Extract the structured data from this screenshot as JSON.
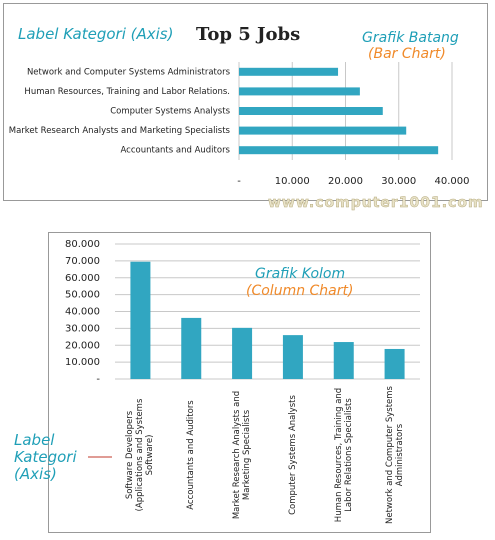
{
  "chart_data": [
    {
      "type": "bar",
      "orientation": "horizontal",
      "title": "Top 5 Jobs",
      "categories": [
        "Network and Computer Systems Administrators",
        "Human Resources, Training and Labor Relations.",
        "Computer Systems Analysts",
        "Market Research Analysts and Marketing Specialists",
        "Accountants and Auditors"
      ],
      "values": [
        18600,
        22700,
        27000,
        31400,
        37400
      ],
      "color": "#31a6c1",
      "xlim": [
        0,
        40000
      ],
      "xticks": [
        {
          "value": 0,
          "label": "-"
        },
        {
          "value": 10000,
          "label": "10.000"
        },
        {
          "value": 20000,
          "label": "20.000"
        },
        {
          "value": 30000,
          "label": "30.000"
        },
        {
          "value": 40000,
          "label": "40.000"
        }
      ],
      "grid": true,
      "annotations": {
        "axis_label": "Label Kategori (Axis)",
        "chart_name": "Grafik Batang",
        "chart_name_en": "(Bar Chart)",
        "watermark": "www.computer1001.com"
      }
    },
    {
      "type": "column",
      "categories": [
        "Software Developers (Applications and Systems Software)",
        "Accountants and Auditors",
        "Market Research Analysts and Marketing Specialists",
        "Computer Systems Analysts",
        "Human Resources, Training and Labor Relations Specialists",
        "Network and Computer Systems Administrators"
      ],
      "values": [
        69500,
        36200,
        30300,
        26000,
        21900,
        17800
      ],
      "color": "#31a6c1",
      "ylim": [
        0,
        80000
      ],
      "yticks": [
        {
          "value": 0,
          "label": "-"
        },
        {
          "value": 10000,
          "label": "10.000"
        },
        {
          "value": 20000,
          "label": "20.000"
        },
        {
          "value": 30000,
          "label": "30.000"
        },
        {
          "value": 40000,
          "label": "40.000"
        },
        {
          "value": 50000,
          "label": "50.000"
        },
        {
          "value": 60000,
          "label": "60.000"
        },
        {
          "value": 70000,
          "label": "70.000"
        },
        {
          "value": 80000,
          "label": "80.000"
        }
      ],
      "grid": true,
      "annotations": {
        "axis_label": "Label Kategori (Axis)",
        "chart_name": "Grafik Kolom",
        "chart_name_en": "(Column Chart)"
      }
    }
  ]
}
